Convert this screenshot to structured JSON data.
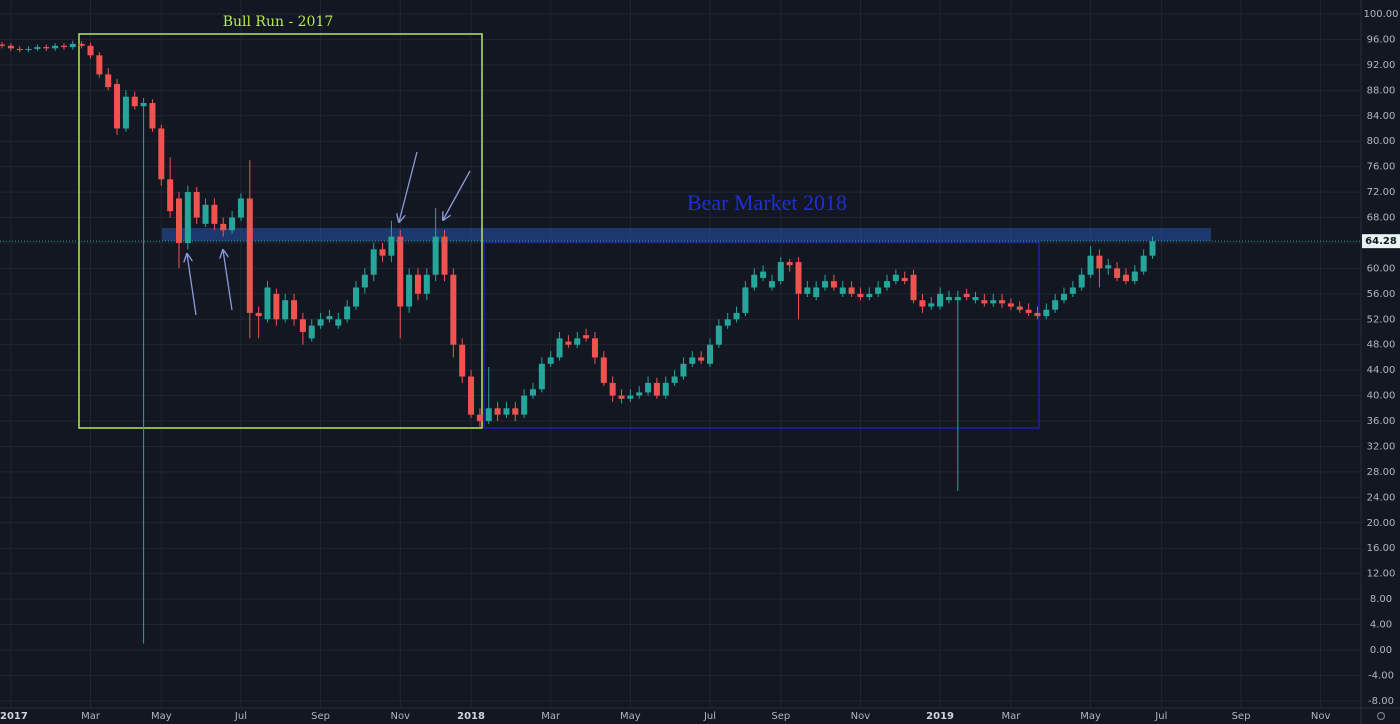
{
  "chart_data": {
    "type": "candlestick",
    "annotations": [
      "Bull Run - 2017",
      "Bear Market 2018"
    ],
    "last_price": 64.28,
    "up_color": "#26a69a",
    "down_color": "#ef5350",
    "grid": true,
    "ylim": [
      -9.12,
      102.2
    ],
    "yticks": [
      {
        "value": -8,
        "label": "-8.00"
      },
      {
        "value": -4,
        "label": "-4.00"
      },
      {
        "value": 0,
        "label": "0.00"
      },
      {
        "value": 4,
        "label": "4.00"
      },
      {
        "value": 8,
        "label": "8.00"
      },
      {
        "value": 12,
        "label": "12.00"
      },
      {
        "value": 16,
        "label": "16.00"
      },
      {
        "value": 20,
        "label": "20.00"
      },
      {
        "value": 24,
        "label": "24.00"
      },
      {
        "value": 28,
        "label": "28.00"
      },
      {
        "value": 32,
        "label": "32.00"
      },
      {
        "value": 36,
        "label": "36.00"
      },
      {
        "value": 40,
        "label": "40.00"
      },
      {
        "value": 44,
        "label": "44.00"
      },
      {
        "value": 48,
        "label": "48.00"
      },
      {
        "value": 52,
        "label": "52.00"
      },
      {
        "value": 56,
        "label": "56.00"
      },
      {
        "value": 60,
        "label": "60.00"
      },
      {
        "value": 64,
        "label": "64.00"
      },
      {
        "value": 68,
        "label": "68.00"
      },
      {
        "value": 72,
        "label": "72.00"
      },
      {
        "value": 76,
        "label": "76.00"
      },
      {
        "value": 80,
        "label": "80.00"
      },
      {
        "value": 84,
        "label": "84.00"
      },
      {
        "value": 88,
        "label": "88.00"
      },
      {
        "value": 92,
        "label": "92.00"
      },
      {
        "value": 96,
        "label": "96.00"
      },
      {
        "value": 100,
        "label": "100.00"
      }
    ],
    "categories": [
      null,
      "2017",
      null,
      null,
      null,
      null,
      null,
      null,
      null,
      null,
      "Mar",
      null,
      null,
      null,
      null,
      null,
      null,
      null,
      "May",
      null,
      null,
      null,
      null,
      null,
      null,
      null,
      null,
      "Jul",
      null,
      null,
      null,
      null,
      null,
      null,
      null,
      null,
      "Sep",
      null,
      null,
      null,
      null,
      null,
      null,
      null,
      null,
      "Nov",
      null,
      null,
      null,
      null,
      null,
      null,
      null,
      "2018",
      null,
      null,
      null,
      null,
      null,
      null,
      null,
      null,
      "Mar",
      null,
      null,
      null,
      null,
      null,
      null,
      null,
      null,
      "May",
      null,
      null,
      null,
      null,
      null,
      null,
      null,
      null,
      "Jul",
      null,
      null,
      null,
      null,
      null,
      null,
      null,
      "Sep",
      null,
      null,
      null,
      null,
      null,
      null,
      null,
      null,
      "Nov",
      null,
      null,
      null,
      null,
      null,
      null,
      null,
      null,
      "2019",
      null,
      null,
      null,
      null,
      null,
      null,
      null,
      "Mar",
      null,
      null,
      null,
      null,
      null,
      null,
      null,
      null,
      "May",
      null,
      null,
      null,
      null,
      null,
      null,
      null,
      "Jul",
      null,
      null,
      null,
      null,
      null,
      null,
      null,
      null,
      "Sep",
      null,
      null,
      null,
      null,
      null,
      null,
      null,
      null,
      "Nov",
      null,
      null,
      null
    ],
    "open": [
      95.2,
      95,
      94.5,
      94.4,
      94.5,
      94.8,
      94.6,
      95,
      94.8,
      95.3,
      95,
      93.5,
      90.5,
      89,
      82,
      87,
      85.5,
      86,
      82,
      74,
      71,
      64,
      72,
      67,
      70,
      67,
      66,
      68,
      71,
      53,
      52,
      56,
      52,
      55,
      52,
      49,
      51,
      52,
      51,
      52,
      54,
      57,
      59,
      63,
      62,
      65,
      54,
      59,
      56,
      59,
      65,
      59,
      48,
      43,
      37,
      36,
      38,
      37,
      38,
      37,
      40,
      41,
      45,
      46,
      48.5,
      48,
      49.5,
      49,
      46,
      42,
      40,
      39.5,
      40,
      40.5,
      42,
      40,
      42,
      43,
      45,
      46,
      45,
      48,
      51,
      52,
      53,
      57,
      58.5,
      57,
      58,
      61,
      61,
      56,
      55.5,
      57,
      58,
      56,
      57,
      56,
      55.5,
      56,
      57,
      58,
      58.5,
      59,
      55,
      54,
      54,
      55,
      55,
      56,
      55,
      55,
      54.5,
      55,
      54.5,
      54,
      53.5,
      53,
      52.5,
      53.5,
      55,
      56,
      57,
      59,
      62,
      60,
      60,
      59,
      58,
      59.5,
      62,
      null,
      null,
      null,
      null,
      null,
      null,
      null,
      null,
      null,
      null,
      null,
      null,
      null,
      null,
      null,
      null,
      null,
      null,
      null,
      null,
      null,
      null
    ],
    "high": [
      95.6,
      95.4,
      94.9,
      94.9,
      95.2,
      95.2,
      95.4,
      95.4,
      95.8,
      95.7,
      95.5,
      94,
      91.5,
      89.8,
      88,
      87.8,
      86.8,
      86.6,
      82.6,
      77.5,
      72,
      73,
      72.8,
      71,
      71,
      68,
      69,
      71.8,
      77,
      54,
      58,
      56.8,
      56,
      56,
      53,
      52,
      53,
      53.5,
      53,
      55,
      58,
      60,
      64,
      64,
      67.5,
      66,
      60,
      60,
      60,
      69.5,
      66,
      60,
      49,
      44,
      38,
      44.5,
      39,
      39,
      39,
      41,
      42,
      46,
      47,
      50,
      49.5,
      50,
      50.5,
      50,
      47,
      43,
      41,
      41,
      41.5,
      43,
      42.8,
      43,
      44,
      46,
      47,
      47,
      49,
      52,
      53,
      54,
      58,
      60,
      60.5,
      59,
      61.8,
      61.5,
      61.8,
      58,
      58,
      59,
      59,
      58,
      58,
      57,
      57,
      58,
      59,
      59.8,
      59.5,
      59.8,
      56,
      55.5,
      57,
      56.5,
      56.5,
      56.8,
      56.3,
      56,
      56,
      56,
      55.3,
      54.8,
      54.5,
      54,
      54.5,
      56,
      57,
      58,
      60,
      63.5,
      63,
      61.5,
      61,
      60,
      60.5,
      63,
      65,
      null,
      null,
      null,
      null,
      null,
      null,
      null,
      null,
      null,
      null,
      null,
      null,
      null,
      null,
      null,
      null,
      null,
      null,
      null,
      null,
      null,
      null
    ],
    "low": [
      94.6,
      94.2,
      94,
      94,
      94.2,
      94.2,
      94.2,
      94.4,
      94.4,
      94.6,
      93,
      90,
      88,
      81,
      81.5,
      85,
      1,
      81.5,
      73,
      68,
      60,
      63,
      67,
      66.5,
      66,
      65,
      65.5,
      67.5,
      49,
      49,
      51.5,
      51,
      51.5,
      51,
      48,
      48.5,
      50.5,
      51.5,
      50.5,
      51.5,
      53.5,
      56,
      58,
      61,
      61,
      49,
      53,
      55,
      55,
      58,
      58,
      46,
      42,
      36.5,
      35,
      35.5,
      36,
      36.5,
      36,
      36.5,
      39.5,
      40.5,
      44.5,
      45.5,
      47.5,
      47.5,
      48.5,
      45,
      41.5,
      39,
      38.8,
      39,
      39.5,
      40,
      39.5,
      39.5,
      41.5,
      42.5,
      44.5,
      45,
      44.5,
      47.5,
      50.5,
      51.5,
      52.5,
      56.5,
      58,
      56.5,
      57.5,
      59.5,
      52,
      55.5,
      55,
      56.5,
      56.5,
      55.5,
      55.5,
      55,
      55,
      55.5,
      56.5,
      57.5,
      57.5,
      54.5,
      53,
      53.5,
      53.5,
      54.5,
      25,
      55,
      54.5,
      54,
      54,
      53.8,
      53.5,
      53,
      52.5,
      52,
      52,
      53,
      54.5,
      55.5,
      56.5,
      58.5,
      57,
      59,
      58,
      57.5,
      57.5,
      59,
      61.5,
      null,
      null,
      null,
      null,
      null,
      null,
      null,
      null,
      null,
      null,
      null,
      null,
      null,
      null,
      null,
      null,
      null,
      null,
      null,
      null,
      null,
      null
    ],
    "close": [
      95,
      94.6,
      94.4,
      94.5,
      94.8,
      94.6,
      95,
      94.8,
      95.3,
      95,
      93.5,
      90.5,
      88.5,
      82,
      87,
      85.5,
      86,
      82,
      74,
      69,
      64,
      72,
      68,
      70,
      67,
      66,
      68,
      71,
      53,
      52.5,
      57,
      52,
      55,
      52,
      50,
      51,
      52,
      52.5,
      52,
      54,
      57,
      59,
      63,
      62,
      65,
      54,
      59,
      56,
      59,
      65,
      59,
      48,
      43,
      37,
      36,
      38,
      37,
      38,
      37,
      40,
      41,
      45,
      46,
      49,
      48,
      49,
      49,
      46,
      42,
      40,
      39.5,
      40,
      40.5,
      42,
      40,
      42,
      43,
      45,
      46,
      45.5,
      48,
      51,
      52,
      53,
      57,
      59,
      59.5,
      58,
      61,
      60.5,
      56,
      57,
      57,
      58,
      57,
      57,
      56,
      55.5,
      56,
      57,
      58,
      59,
      58,
      55,
      54,
      54.5,
      56,
      55.5,
      55.5,
      55.5,
      55.5,
      54.5,
      55,
      54.5,
      54,
      53.5,
      53,
      52.5,
      53.5,
      55,
      56,
      57,
      59,
      62,
      60,
      60.5,
      58.5,
      58,
      59.5,
      62,
      64.28,
      null,
      null,
      null,
      null,
      null,
      null,
      null,
      null,
      null,
      null,
      null,
      null,
      null,
      null,
      null,
      null,
      null,
      null,
      null,
      null,
      null,
      null
    ]
  }
}
